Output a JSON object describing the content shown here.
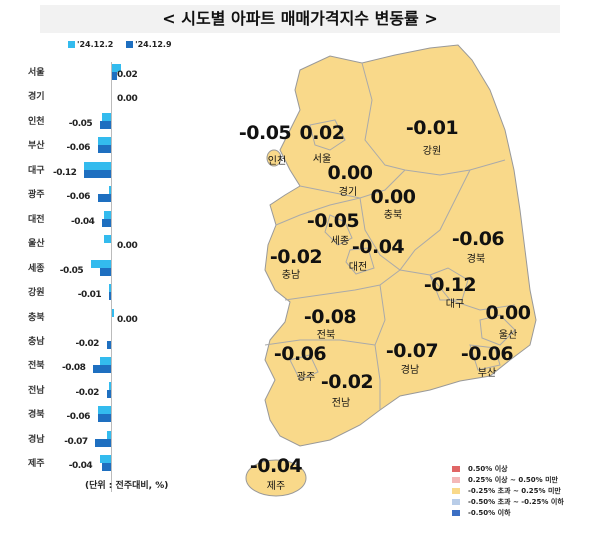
{
  "title": "< 시도별 아파트 매매가격지수 변동률 >",
  "chart_data": [
    {
      "type": "bar",
      "orientation": "horizontal",
      "categories": [
        "서울",
        "경기",
        "인천",
        "부산",
        "대구",
        "광주",
        "대전",
        "울산",
        "세종",
        "강원",
        "충북",
        "충남",
        "전북",
        "전남",
        "경북",
        "경남",
        "제주"
      ],
      "series": [
        {
          "name": "'24.12.2",
          "color": "#33bbee",
          "values": [
            0.04,
            0.0,
            -0.04,
            -0.06,
            -0.12,
            -0.01,
            -0.03,
            -0.03,
            -0.09,
            -0.01,
            0.01,
            0.0,
            -0.05,
            -0.01,
            -0.06,
            -0.02,
            -0.05
          ]
        },
        {
          "name": "'24.12.9",
          "color": "#1e6fc0",
          "values": [
            0.02,
            0.0,
            -0.05,
            -0.06,
            -0.12,
            -0.06,
            -0.04,
            0.0,
            -0.05,
            -0.01,
            0.0,
            -0.02,
            -0.08,
            -0.02,
            -0.06,
            -0.07,
            -0.04
          ]
        }
      ],
      "data_labels": [
        "0.02",
        "0.00",
        "-0.05",
        "-0.06",
        "-0.12",
        "-0.06",
        "-0.04",
        "0.00",
        "-0.05",
        "-0.01",
        "0.00",
        "-0.02",
        "-0.08",
        "-0.02",
        "-0.06",
        "-0.07",
        "-0.04"
      ],
      "unit_note": "(단위 : 전주대비, %)",
      "legend_position": "top"
    },
    {
      "type": "map",
      "regions": [
        {
          "name": "인천",
          "value": "-0.05"
        },
        {
          "name": "서울",
          "value": "0.02"
        },
        {
          "name": "강원",
          "value": "-0.01"
        },
        {
          "name": "경기",
          "value": "0.00"
        },
        {
          "name": "충북",
          "value": "0.00"
        },
        {
          "name": "세종",
          "value": "-0.05"
        },
        {
          "name": "충남",
          "value": "-0.02"
        },
        {
          "name": "대전",
          "value": "-0.04"
        },
        {
          "name": "경북",
          "value": "-0.06"
        },
        {
          "name": "대구",
          "value": "-0.12"
        },
        {
          "name": "울산",
          "value": "0.00"
        },
        {
          "name": "전북",
          "value": "-0.08"
        },
        {
          "name": "광주",
          "value": "-0.06"
        },
        {
          "name": "전남",
          "value": "-0.02"
        },
        {
          "name": "경남",
          "value": "-0.07"
        },
        {
          "name": "부산",
          "value": "-0.06"
        },
        {
          "name": "제주",
          "value": "-0.04"
        }
      ],
      "legend": [
        {
          "label": "0.50% 이상",
          "color": "#e06666"
        },
        {
          "label": "0.25% 이상 ~ 0.50% 미만",
          "color": "#f4b8b8"
        },
        {
          "label": "-0.25% 초과 ~ 0.25% 미만",
          "color": "#f9d98a"
        },
        {
          "label": "-0.50% 초과 ~ -0.25% 이하",
          "color": "#b9cde8"
        },
        {
          "label": "-0.50% 이하",
          "color": "#3c6fc4"
        }
      ]
    }
  ]
}
